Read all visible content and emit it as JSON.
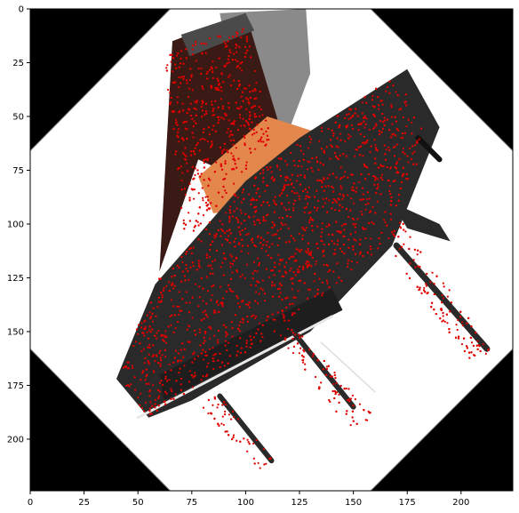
{
  "chart_data": {
    "type": "image",
    "title": "",
    "xlabel": "",
    "ylabel": "",
    "xlim": [
      0,
      224
    ],
    "ylim": [
      224,
      0
    ],
    "xticks": [
      0,
      25,
      50,
      75,
      100,
      125,
      150,
      175,
      200
    ],
    "yticks": [
      0,
      25,
      50,
      75,
      100,
      125,
      150,
      175,
      200
    ],
    "xtick_labels": [
      "0",
      "25",
      "50",
      "75",
      "100",
      "125",
      "150",
      "175",
      "200"
    ],
    "ytick_labels": [
      "0",
      "25",
      "50",
      "75",
      "100",
      "125",
      "150",
      "175",
      "200"
    ],
    "image_content": {
      "background_corners_color": "#000000",
      "inner_octagon_color": "#ffffff",
      "octagon_vertices": [
        [
          65,
          0
        ],
        [
          158,
          0
        ],
        [
          224,
          66
        ],
        [
          224,
          158
        ],
        [
          158,
          224
        ],
        [
          65,
          224
        ],
        [
          0,
          158
        ],
        [
          0,
          66
        ]
      ],
      "object": "grand-piano",
      "object_color": "#2a2a2a",
      "accent_color": "#e4874c",
      "marker_color": "#e00000",
      "markers": "red point markers densely overlaid on the piano silhouette"
    }
  }
}
